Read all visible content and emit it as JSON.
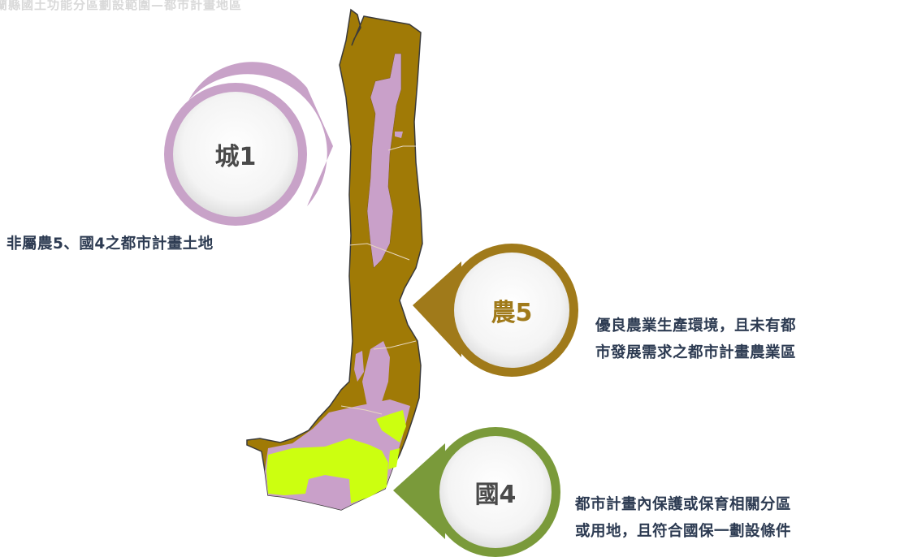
{
  "page": {
    "title": "宜蘭縣國土功能分區劃設範圍—都市計畫地區"
  },
  "zones": [
    {
      "id": "urban1",
      "label": "城1",
      "color": "#c8a2c8",
      "label_color": "#4a4a4a",
      "description_lines": [
        "非屬農5、國4之都市計畫土地"
      ]
    },
    {
      "id": "agri5",
      "label": "農5",
      "color": "#a07a1a",
      "label_color": "#a07a1a",
      "description_lines": [
        "優良農業生產環境，且未有都",
        "市發展需求之都市計畫農業區"
      ]
    },
    {
      "id": "conserv4",
      "label": "國4",
      "color": "#7a9a3a",
      "label_color": "#4a4a4a",
      "description_lines": [
        "都市計畫內保護或保育相關分區",
        "或用地，且符合國保一劃設條件"
      ]
    }
  ],
  "map_colors": {
    "agriculture_fill": "#a07a06",
    "urban_fill": "#c9a0c9",
    "conservation_fill": "#ccff10",
    "outline": "#3a3a3a"
  }
}
